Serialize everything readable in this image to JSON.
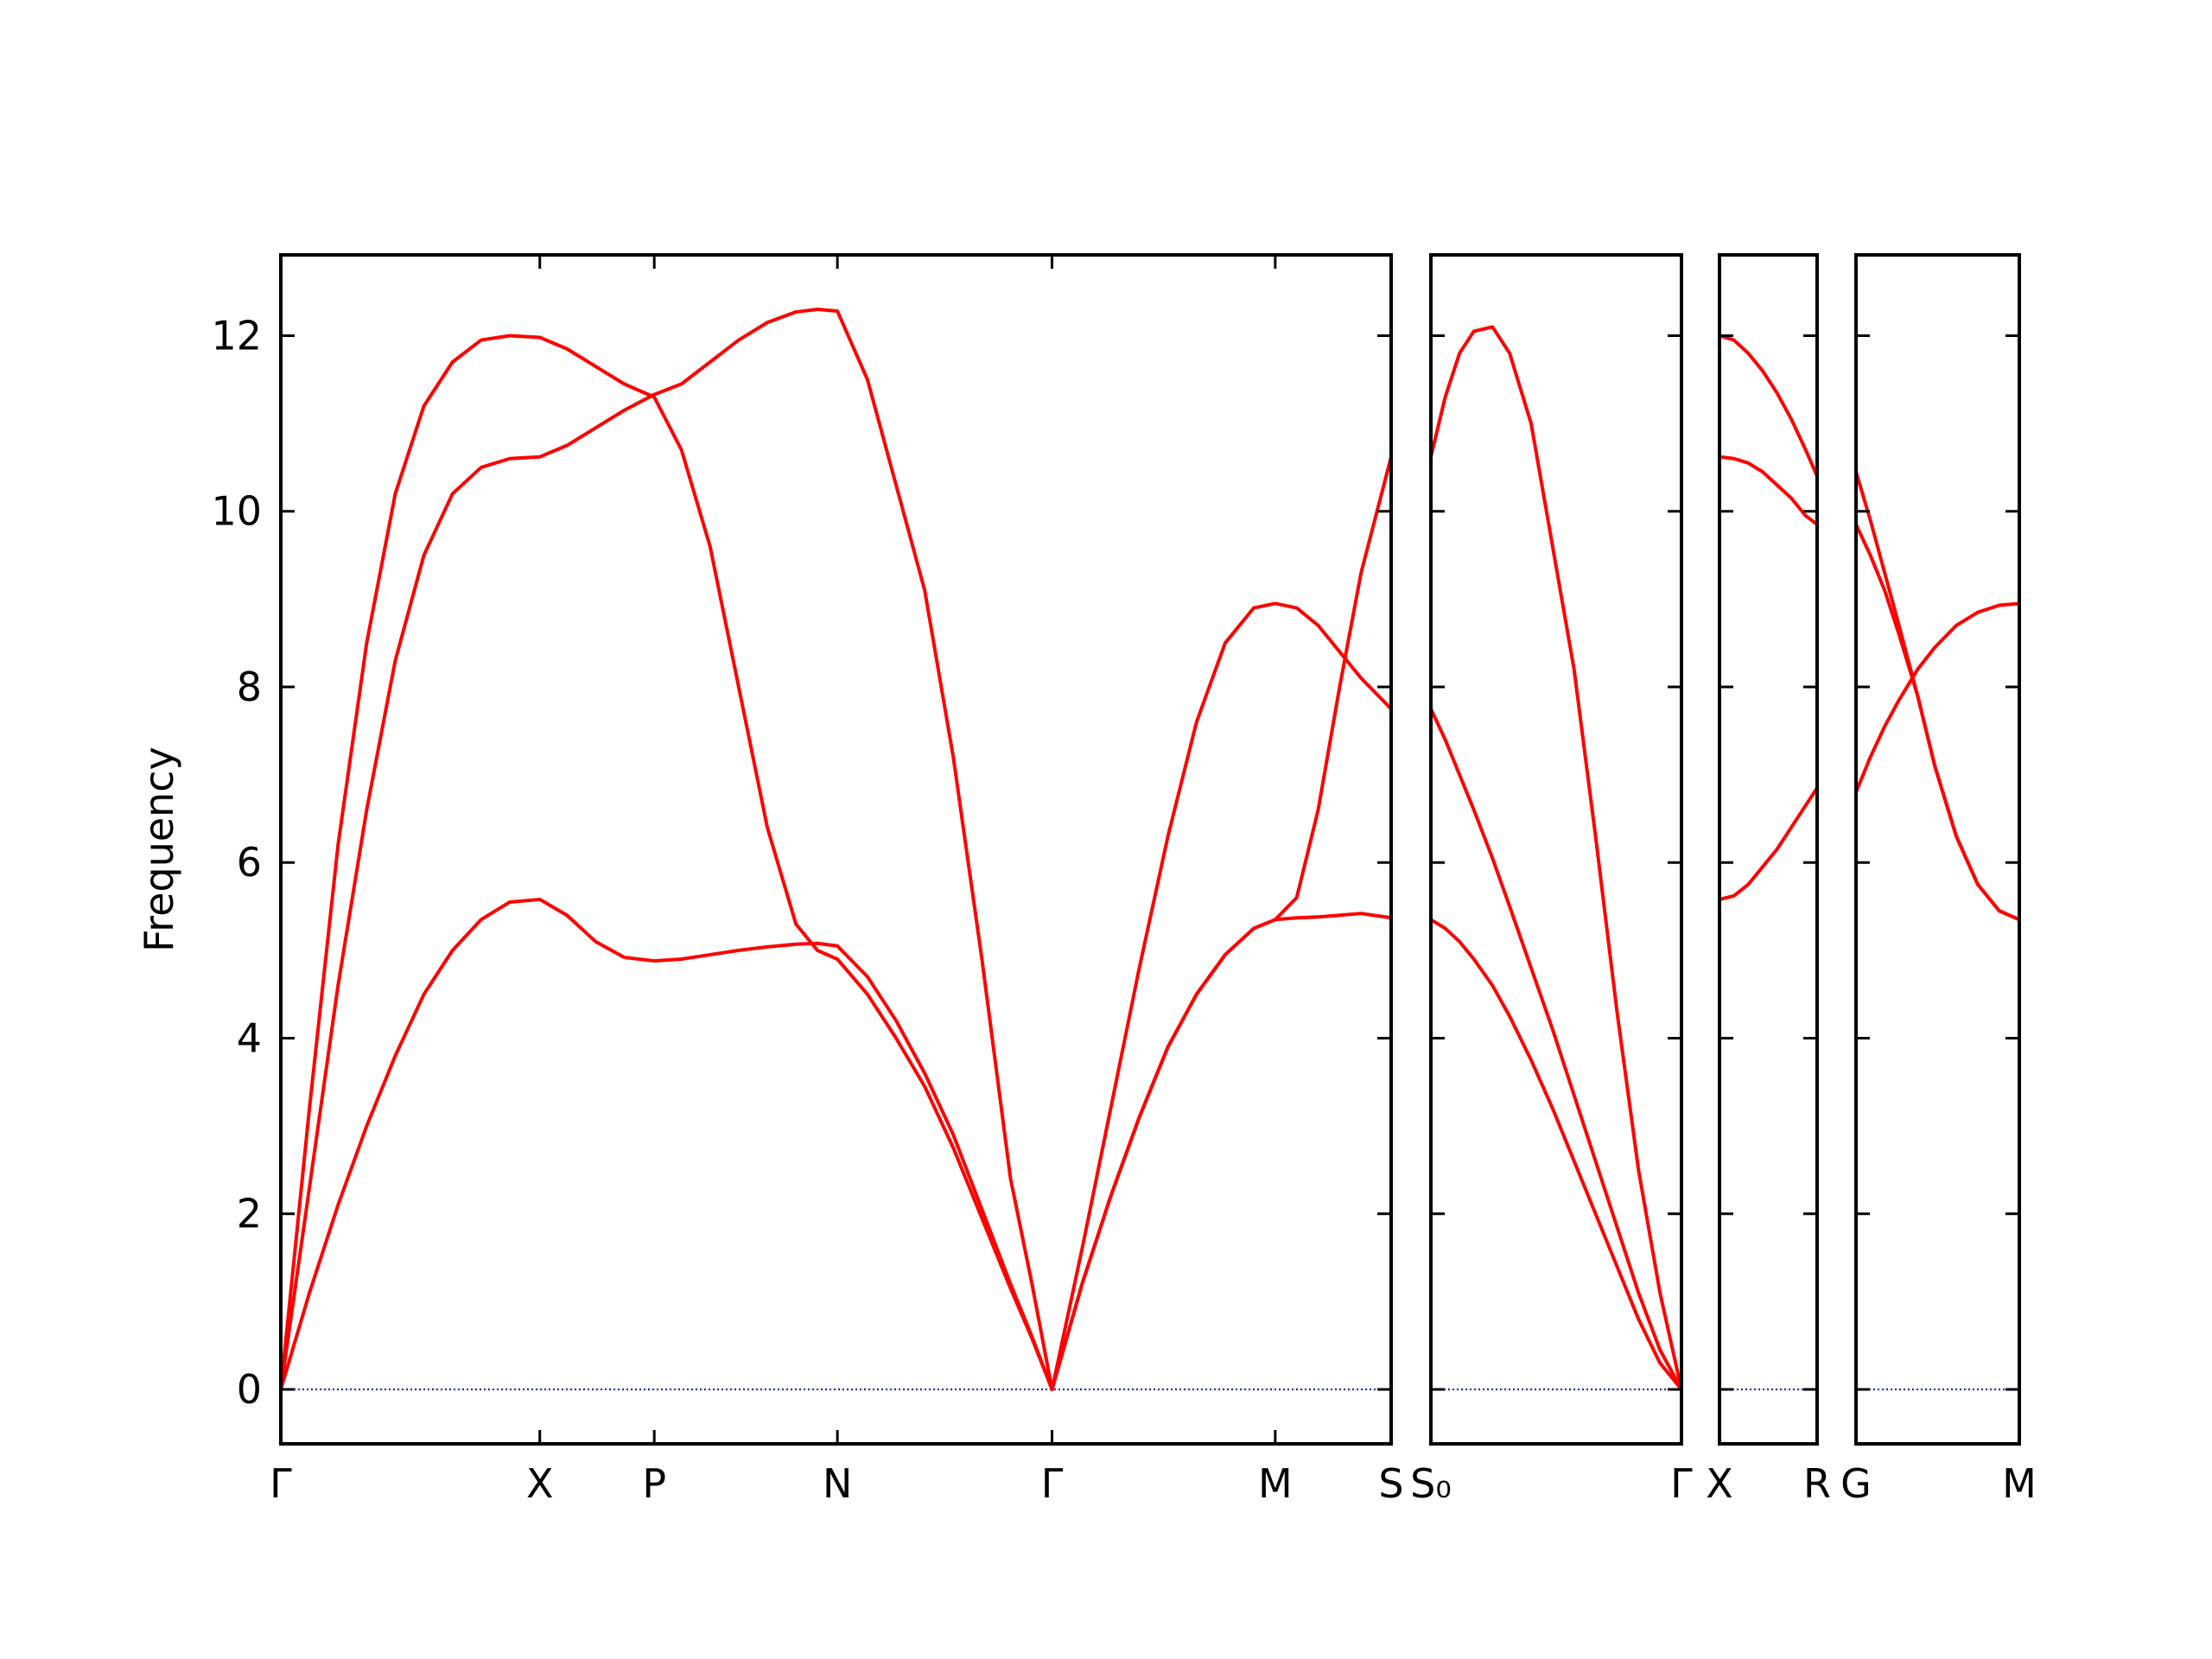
{
  "chart_data": [
    {
      "type": "line",
      "ylabel": "Frequency",
      "xlim": [
        0,
        7.76
      ],
      "ylim": [
        -0.62,
        12.92
      ],
      "yticks": [
        0,
        2,
        4,
        6,
        8,
        10,
        12
      ],
      "xticks": [
        {
          "value": 0,
          "label": "Γ"
        },
        {
          "value": 1.81,
          "label": "X"
        },
        {
          "value": 2.61,
          "label": "P"
        },
        {
          "value": 3.89,
          "label": "N"
        },
        {
          "value": 5.39,
          "label": "Γ"
        },
        {
          "value": 6.95,
          "label": "M"
        },
        {
          "value": 7.76,
          "label": "S"
        }
      ],
      "hline": {
        "value": 0,
        "color": "#0000cc"
      },
      "x": [
        0,
        0.2,
        0.4,
        0.6,
        0.8,
        1.0,
        1.2,
        1.4,
        1.6,
        1.81,
        2.0,
        2.2,
        2.4,
        2.61,
        2.8,
        3.0,
        3.2,
        3.4,
        3.6,
        3.75,
        3.89,
        4.1,
        4.3,
        4.5,
        4.7,
        4.9,
        5.1,
        5.25,
        5.39,
        5.6,
        5.8,
        6.0,
        6.2,
        6.4,
        6.6,
        6.8,
        6.95,
        7.1,
        7.25,
        7.4,
        7.55,
        7.76
      ],
      "series": [
        {
          "color": "#ff0000",
          "values": [
            0,
            3.2,
            6.2,
            8.5,
            10.2,
            11.2,
            11.7,
            11.95,
            12.0,
            11.98,
            11.85,
            11.65,
            11.45,
            11.3,
            10.7,
            9.6,
            8.0,
            6.4,
            5.3,
            5.0,
            4.9,
            4.5,
            4.0,
            3.45,
            2.75,
            1.95,
            1.15,
            0.58,
            0,
            1.2,
            2.2,
            3.1,
            3.9,
            4.5,
            4.95,
            5.25,
            5.35,
            5.37,
            5.38,
            5.4,
            5.42,
            5.37
          ]
        },
        {
          "color": "#ff0000",
          "values": [
            0,
            2.3,
            4.6,
            6.6,
            8.3,
            9.5,
            10.2,
            10.5,
            10.6,
            10.62,
            10.75,
            10.95,
            11.15,
            11.33,
            11.45,
            11.7,
            11.95,
            12.15,
            12.27,
            12.3,
            12.28,
            11.5,
            10.3,
            9.1,
            7.2,
            4.9,
            2.4,
            1.2,
            0,
            1.6,
            3.2,
            4.8,
            6.3,
            7.6,
            8.5,
            8.9,
            8.95,
            8.9,
            8.7,
            8.4,
            8.1,
            7.75
          ]
        },
        {
          "color": "#ff0000",
          "values": [
            0,
            1.1,
            2.1,
            3.0,
            3.8,
            4.5,
            5.0,
            5.35,
            5.55,
            5.58,
            5.4,
            5.1,
            4.92,
            4.88,
            4.9,
            4.95,
            5.0,
            5.04,
            5.07,
            5.08,
            5.05,
            4.7,
            4.2,
            3.6,
            2.9,
            2.05,
            1.2,
            0.6,
            0,
            1.2,
            2.2,
            3.1,
            3.9,
            4.5,
            4.95,
            5.25,
            5.35,
            5.6,
            6.6,
            8.0,
            9.3,
            10.62
          ]
        }
      ]
    },
    {
      "type": "line",
      "xlim": [
        0,
        1.75
      ],
      "ylim": [
        -0.62,
        12.92
      ],
      "yticks": [
        0,
        2,
        4,
        6,
        8,
        10,
        12
      ],
      "xticks": [
        {
          "value": 0,
          "label": "S₀"
        },
        {
          "value": 1.75,
          "label": "Γ"
        }
      ],
      "hline": {
        "value": 0,
        "color": "#0000cc"
      },
      "x": [
        0,
        0.1,
        0.2,
        0.3,
        0.43,
        0.55,
        0.7,
        0.85,
        1.0,
        1.15,
        1.3,
        1.45,
        1.6,
        1.75
      ],
      "series": [
        {
          "color": "#ff0000",
          "values": [
            10.62,
            11.3,
            11.8,
            12.05,
            12.1,
            11.8,
            11.0,
            9.6,
            8.2,
            6.3,
            4.3,
            2.5,
            1.1,
            0
          ]
        },
        {
          "color": "#ff0000",
          "values": [
            7.75,
            7.4,
            7.0,
            6.6,
            6.05,
            5.5,
            4.8,
            4.1,
            3.35,
            2.6,
            1.85,
            1.1,
            0.45,
            0
          ]
        },
        {
          "color": "#ff0000",
          "values": [
            5.35,
            5.25,
            5.1,
            4.9,
            4.6,
            4.25,
            3.75,
            3.2,
            2.6,
            2.0,
            1.4,
            0.8,
            0.3,
            0
          ]
        }
      ]
    },
    {
      "type": "line",
      "xlim": [
        0,
        0.68
      ],
      "ylim": [
        -0.62,
        12.92
      ],
      "yticks": [
        0,
        2,
        4,
        6,
        8,
        10,
        12
      ],
      "xticks": [
        {
          "value": 0,
          "label": "X"
        },
        {
          "value": 0.68,
          "label": "R"
        }
      ],
      "hline": {
        "value": 0,
        "color": "#0000cc"
      },
      "x": [
        0,
        0.1,
        0.2,
        0.3,
        0.4,
        0.5,
        0.6,
        0.68
      ],
      "series": [
        {
          "color": "#ff0000",
          "values": [
            12.0,
            11.95,
            11.8,
            11.6,
            11.35,
            11.05,
            10.7,
            10.4
          ]
        },
        {
          "color": "#ff0000",
          "values": [
            10.62,
            10.6,
            10.55,
            10.45,
            10.3,
            10.15,
            9.95,
            9.85
          ]
        },
        {
          "color": "#ff0000",
          "values": [
            5.58,
            5.62,
            5.75,
            5.95,
            6.15,
            6.4,
            6.65,
            6.85
          ]
        }
      ]
    },
    {
      "type": "line",
      "xlim": [
        0,
        1.14
      ],
      "ylim": [
        -0.62,
        12.92
      ],
      "yticks": [
        0,
        2,
        4,
        6,
        8,
        10,
        12
      ],
      "xticks": [
        {
          "value": 0,
          "label": "G"
        },
        {
          "value": 1.14,
          "label": "M"
        }
      ],
      "hline": {
        "value": 0,
        "color": "#0000cc"
      },
      "x": [
        0,
        0.1,
        0.2,
        0.3,
        0.43,
        0.55,
        0.7,
        0.85,
        1.0,
        1.14
      ],
      "series": [
        {
          "color": "#ff0000",
          "values": [
            10.45,
            9.9,
            9.3,
            8.7,
            7.9,
            7.1,
            6.3,
            5.75,
            5.45,
            5.35
          ]
        },
        {
          "color": "#ff0000",
          "values": [
            9.85,
            9.5,
            9.1,
            8.6,
            7.9,
            7.1,
            6.3,
            5.75,
            5.45,
            5.35
          ]
        },
        {
          "color": "#ff0000",
          "values": [
            6.8,
            7.2,
            7.55,
            7.85,
            8.2,
            8.45,
            8.7,
            8.85,
            8.93,
            8.95
          ]
        }
      ]
    }
  ]
}
